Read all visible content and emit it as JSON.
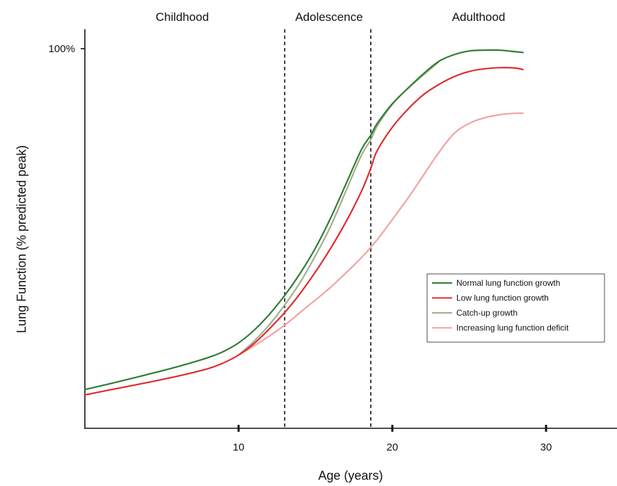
{
  "chart_data": {
    "type": "line",
    "title": "",
    "xlabel": "Age (years)",
    "ylabel": "Lung Function (% predicted peak)",
    "xlim": [
      0,
      35
    ],
    "ylim": [
      0,
      100
    ],
    "x_ticks": [
      10,
      20,
      30
    ],
    "x_tick_labels": [
      "10",
      "20",
      "30"
    ],
    "y_ticks": [
      100
    ],
    "y_tick_labels": [
      "100%"
    ],
    "grid": false,
    "phases": [
      {
        "label": "Childhood"
      },
      {
        "label": "Adolescence"
      },
      {
        "label": "Adulthood"
      }
    ],
    "phase_boundaries": [
      13,
      18.6
    ],
    "legend_position": "right-center",
    "series": [
      {
        "name": "Normal lung function growth",
        "color": "#2e7d32",
        "x": [
          0,
          2,
          4,
          6,
          8,
          9,
          10,
          11,
          12,
          13,
          14,
          15,
          16,
          17,
          18,
          18.6,
          19,
          20,
          21,
          22,
          23,
          24,
          25,
          26,
          27,
          28,
          28.5
        ],
        "y": [
          10.2,
          12.1,
          14.1,
          16.2,
          18.6,
          20.2,
          22.5,
          25.8,
          30,
          35,
          40.8,
          47.5,
          55.5,
          64.5,
          73.5,
          77.2,
          80.2,
          85.5,
          89.5,
          93.3,
          96.6,
          98.4,
          99.4,
          99.6,
          99.6,
          99.2,
          99
        ]
      },
      {
        "name": "Low lung function growth",
        "color": "#e02b2b",
        "x": [
          0,
          2,
          4,
          6,
          8,
          9,
          10,
          11,
          12,
          13,
          14,
          15,
          16,
          17,
          18,
          18.6,
          19,
          20,
          21,
          22,
          23,
          24,
          25,
          26,
          27,
          28,
          28.5
        ],
        "y": [
          8.8,
          10.4,
          12,
          13.7,
          15.7,
          17.2,
          19.3,
          22.3,
          26.2,
          30.5,
          35.5,
          41.2,
          47.5,
          54.5,
          62.5,
          68.5,
          73,
          79.3,
          84,
          87.8,
          90.5,
          92.6,
          94,
          94.7,
          95,
          94.9,
          94.5
        ]
      },
      {
        "name": "Catch-up growth",
        "color": "#a3ad8f",
        "x": [
          10,
          11,
          12,
          13,
          14,
          15,
          16,
          17,
          18,
          18.6,
          19,
          20,
          21,
          22,
          23
        ],
        "y": [
          19.3,
          22.9,
          27.3,
          32.5,
          38.4,
          45.5,
          53.3,
          62.7,
          72,
          76,
          79.5,
          85.3,
          89.5,
          93,
          96.4
        ]
      },
      {
        "name": "Increasing lung function deficit",
        "color": "#f4a0a0",
        "x": [
          10,
          11,
          12,
          13,
          14,
          15,
          16,
          17,
          18,
          19,
          20,
          21,
          22,
          23,
          24,
          25,
          26,
          27,
          28,
          28.5
        ],
        "y": [
          19.3,
          21.7,
          24.3,
          27.2,
          30.5,
          33.8,
          37.2,
          41,
          45,
          49.6,
          55,
          60.5,
          66.5,
          72.5,
          77.6,
          80.3,
          81.8,
          82.6,
          83,
          83
        ]
      }
    ]
  }
}
